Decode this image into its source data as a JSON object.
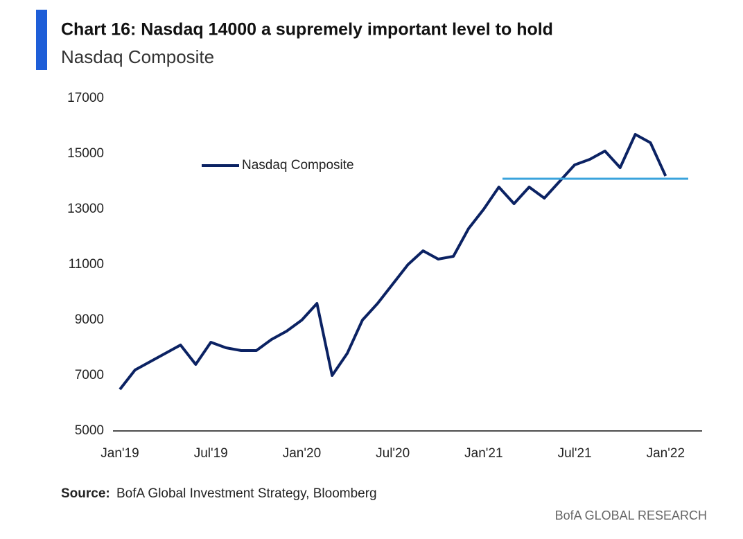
{
  "chart_data": {
    "type": "line",
    "title": "Chart 16: Nasdaq 14000 a supremely important level to hold",
    "subtitle": "Nasdaq Composite",
    "source_label": "Source:",
    "source": "BofA Global Investment Strategy, Bloomberg",
    "footer": "BofA GLOBAL RESEARCH",
    "categories": [
      "Jan'19",
      null,
      null,
      null,
      null,
      null,
      "Jul'19",
      null,
      null,
      null,
      null,
      null,
      "Jan'20",
      null,
      null,
      null,
      null,
      null,
      "Jul'20",
      null,
      null,
      null,
      null,
      null,
      "Jan'21",
      null,
      null,
      null,
      null,
      null,
      "Jul'21",
      null,
      null,
      null,
      null,
      null,
      "Jan'22"
    ],
    "series": [
      {
        "name": "Nasdaq Composite",
        "color": "#0b2263",
        "values": [
          6500,
          7200,
          7500,
          7800,
          8100,
          7400,
          8200,
          8000,
          7900,
          7900,
          8300,
          8600,
          9000,
          9600,
          7000,
          7800,
          9000,
          9600,
          10300,
          11000,
          11500,
          11200,
          11300,
          12300,
          13000,
          13800,
          13200,
          13800,
          13400,
          14000,
          14600,
          14800,
          15100,
          14500,
          15700,
          15400,
          14200
        ]
      }
    ],
    "reference_line": {
      "value": 14100,
      "color": "#3aa3dc"
    },
    "ylim": [
      5000,
      17000
    ],
    "yticks": [
      5000,
      7000,
      9000,
      11000,
      13000,
      15000,
      17000
    ]
  }
}
